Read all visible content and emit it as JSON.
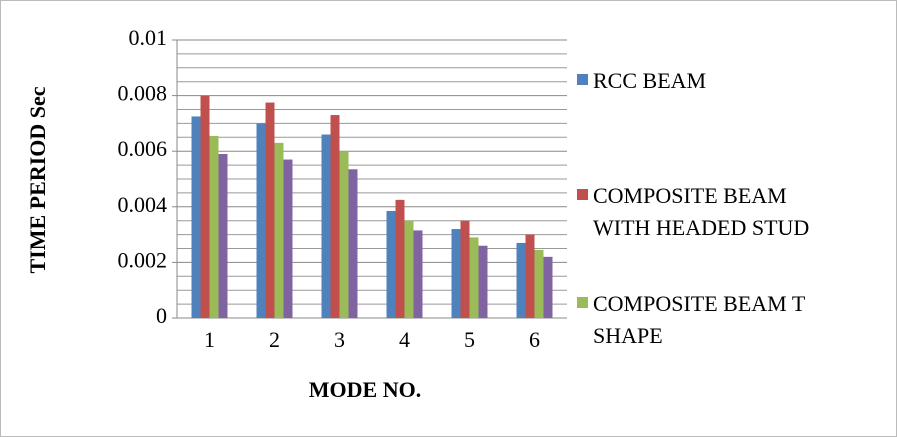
{
  "chart_data": {
    "type": "bar",
    "y_label": "TIME PERIOD Sec",
    "x_label": "MODE NO.",
    "categories": [
      "1",
      "2",
      "3",
      "4",
      "5",
      "6"
    ],
    "series": [
      {
        "name": "RCC BEAM",
        "color": "#4f81bd",
        "values": [
          0.00725,
          0.007,
          0.0066,
          0.00385,
          0.0032,
          0.0027
        ]
      },
      {
        "name": "COMPOSITE BEAM WITH HEADED STUD",
        "color": "#c0504d",
        "values": [
          0.008,
          0.00775,
          0.0073,
          0.00425,
          0.0035,
          0.003
        ]
      },
      {
        "name": "COMPOSITE BEAM T SHAPE",
        "color": "#9bbb59",
        "values": [
          0.00655,
          0.0063,
          0.006,
          0.0035,
          0.0029,
          0.00245
        ]
      },
      {
        "color": "#8064a2",
        "values": [
          0.0059,
          0.0057,
          0.00535,
          0.00315,
          0.0026,
          0.0022
        ]
      }
    ],
    "ylim": [
      0,
      0.01
    ],
    "yticks": [
      0,
      0.002,
      0.004,
      0.006,
      0.008,
      0.01
    ],
    "yminorticks": [
      0.0005,
      0.001,
      0.0015,
      0.0025,
      0.003,
      0.0035,
      0.0045,
      0.005,
      0.0055,
      0.0065,
      0.007,
      0.0075,
      0.0085,
      0.009,
      0.0095
    ],
    "grid": true,
    "legend": "right"
  }
}
